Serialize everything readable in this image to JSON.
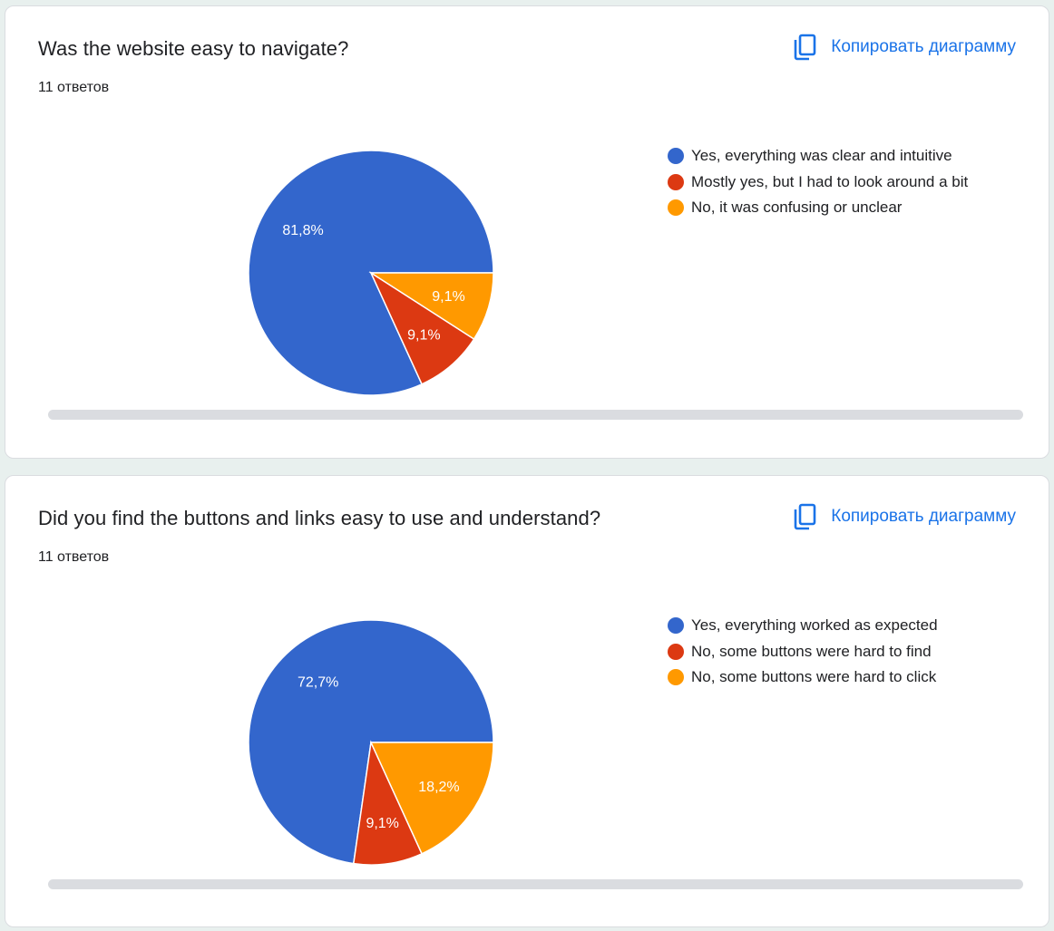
{
  "cards": [
    {
      "title": "Was the website easy to navigate?",
      "count": "11 ответов",
      "copy_label": "Копировать диаграмму",
      "legend": [
        {
          "label": "Yes, everything was clear and intuitive",
          "color": "#3366cc"
        },
        {
          "label": "Mostly yes, but I had to look around a bit",
          "color": "#dc3912"
        },
        {
          "label": "No, it was confusing or unclear",
          "color": "#ff9900"
        }
      ]
    },
    {
      "title": "Did you find the buttons and links easy to use and understand?",
      "count": "11 ответов",
      "copy_label": "Копировать диаграмму",
      "legend": [
        {
          "label": "Yes, everything worked as expected",
          "color": "#3366cc"
        },
        {
          "label": "No, some buttons were hard to find",
          "color": "#dc3912"
        },
        {
          "label": "No, some buttons were hard to click",
          "color": "#ff9900"
        }
      ]
    }
  ],
  "icons": {
    "copy": "copy-icon"
  },
  "chart_data": [
    {
      "type": "pie",
      "title": "Was the website easy to navigate?",
      "categories": [
        "Yes, everything was clear and intuitive",
        "Mostly yes, but I had to look around a bit",
        "No, it was confusing or unclear"
      ],
      "values": [
        9,
        1,
        1
      ],
      "labels": [
        "81,8%",
        "9,1%",
        "9,1%"
      ],
      "colors": [
        "#3366cc",
        "#dc3912",
        "#ff9900"
      ],
      "legend": "right"
    },
    {
      "type": "pie",
      "title": "Did you find the buttons and links easy to use and understand?",
      "categories": [
        "Yes, everything worked as expected",
        "No, some buttons were hard to find",
        "No, some buttons were hard to click"
      ],
      "values": [
        8,
        1,
        2
      ],
      "labels": [
        "72,7%",
        "9,1%",
        "18,2%"
      ],
      "colors": [
        "#3366cc",
        "#dc3912",
        "#ff9900"
      ],
      "legend": "right"
    }
  ]
}
